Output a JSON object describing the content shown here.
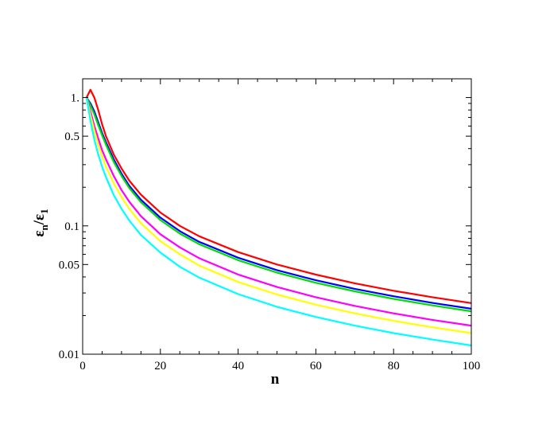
{
  "chart_data": {
    "type": "line",
    "title": "",
    "xlabel": "n",
    "ylabel": {
      "main1": "ε",
      "sub1": "n",
      "slash": "/",
      "main2": "ε",
      "sub2": "1"
    },
    "xlim": [
      0,
      100
    ],
    "ylim": [
      0.01,
      1.4
    ],
    "yscale": "log",
    "grid": false,
    "legend": "none",
    "x_ticks": [
      {
        "value": 0,
        "label": "0"
      },
      {
        "value": 20,
        "label": "20"
      },
      {
        "value": 40,
        "label": "40"
      },
      {
        "value": 60,
        "label": "60"
      },
      {
        "value": 80,
        "label": "80"
      },
      {
        "value": 100,
        "label": "100"
      }
    ],
    "y_ticks": [
      {
        "value": 1,
        "label": "1."
      },
      {
        "value": 0.5,
        "label": "0.5"
      },
      {
        "value": 0.1,
        "label": "0.1"
      },
      {
        "value": 0.05,
        "label": "0.05"
      },
      {
        "value": 0.01,
        "label": "0.01"
      }
    ],
    "x": [
      1,
      2,
      3,
      4,
      5,
      6,
      8,
      10,
      12,
      15,
      20,
      25,
      30,
      40,
      50,
      60,
      70,
      80,
      90,
      100
    ],
    "series": [
      {
        "color": "#ff0000",
        "values": [
          1.0,
          1.15,
          1.0,
          0.8,
          0.62,
          0.5,
          0.36,
          0.28,
          0.225,
          0.175,
          0.127,
          0.1,
          0.083,
          0.0625,
          0.05,
          0.0417,
          0.0357,
          0.0312,
          0.0278,
          0.025
        ]
      },
      {
        "color": "#0000ff",
        "values": [
          1.0,
          0.9,
          0.78,
          0.64,
          0.53,
          0.45,
          0.33,
          0.255,
          0.205,
          0.16,
          0.116,
          0.091,
          0.075,
          0.0565,
          0.0452,
          0.0377,
          0.0323,
          0.0283,
          0.0251,
          0.0226
        ]
      },
      {
        "color": "#00dd00",
        "values": [
          1.0,
          0.87,
          0.74,
          0.61,
          0.51,
          0.43,
          0.315,
          0.245,
          0.197,
          0.153,
          0.111,
          0.087,
          0.072,
          0.054,
          0.0432,
          0.036,
          0.0309,
          0.027,
          0.024,
          0.0216
        ]
      },
      {
        "color": "#ff00ff",
        "values": [
          1.0,
          0.78,
          0.6,
          0.48,
          0.39,
          0.33,
          0.245,
          0.19,
          0.154,
          0.119,
          0.086,
          0.068,
          0.056,
          0.0418,
          0.0334,
          0.0278,
          0.0238,
          0.0208,
          0.0185,
          0.0167
        ]
      },
      {
        "color": "#ffff00",
        "values": [
          1.0,
          0.73,
          0.55,
          0.43,
          0.35,
          0.29,
          0.215,
          0.168,
          0.136,
          0.105,
          0.076,
          0.06,
          0.049,
          0.0365,
          0.0292,
          0.0243,
          0.0208,
          0.0182,
          0.0162,
          0.0146
        ]
      },
      {
        "color": "#00ffff",
        "values": [
          1.0,
          0.66,
          0.47,
          0.36,
          0.29,
          0.24,
          0.174,
          0.136,
          0.11,
          0.085,
          0.062,
          0.048,
          0.0395,
          0.0294,
          0.0234,
          0.0195,
          0.0167,
          0.0146,
          0.013,
          0.0117
        ]
      }
    ]
  }
}
